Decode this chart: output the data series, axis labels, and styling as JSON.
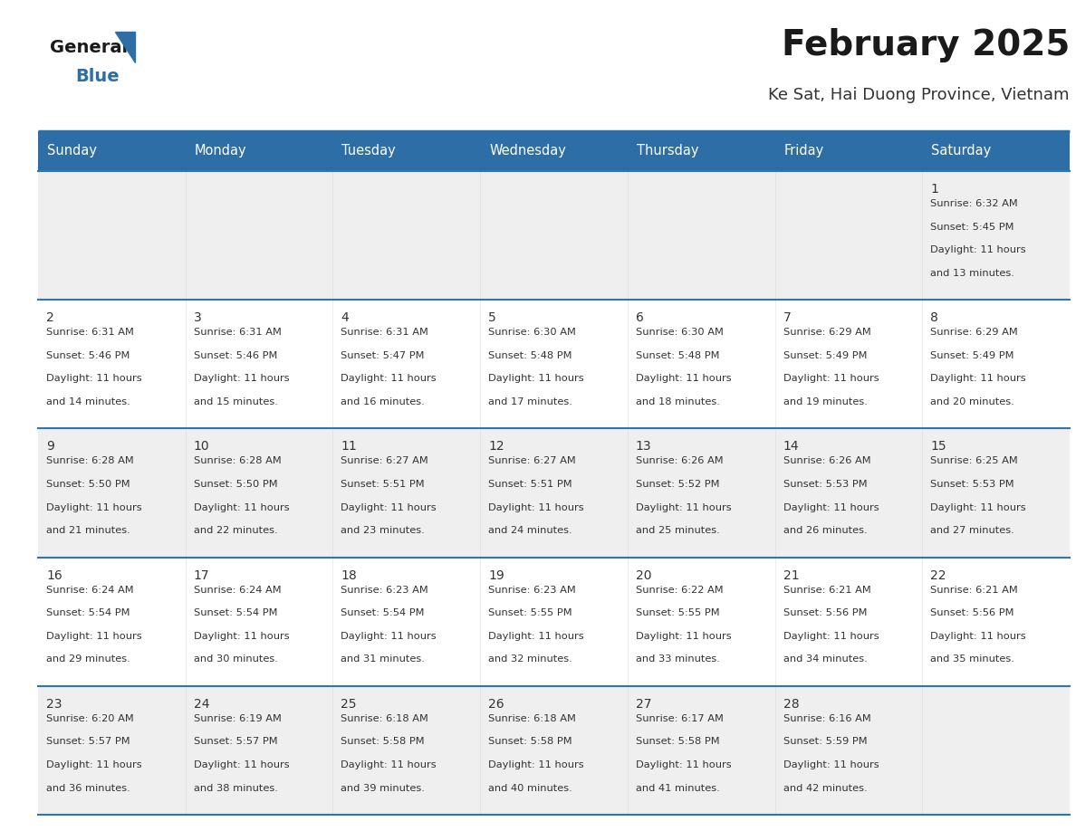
{
  "title": "February 2025",
  "subtitle": "Ke Sat, Hai Duong Province, Vietnam",
  "header_bg": "#2E6EA6",
  "header_text_color": "#FFFFFF",
  "cell_bg_light": "#EFEFEF",
  "cell_bg_white": "#FFFFFF",
  "cell_border_color": "#2E75B6",
  "day_number_color": "#333333",
  "cell_text_color": "#333333",
  "days_of_week": [
    "Sunday",
    "Monday",
    "Tuesday",
    "Wednesday",
    "Thursday",
    "Friday",
    "Saturday"
  ],
  "calendar_data": [
    [
      null,
      null,
      null,
      null,
      null,
      null,
      {
        "day": 1,
        "sunrise": "6:32 AM",
        "sunset": "5:45 PM",
        "daylight": "11 hours",
        "daylight2": "and 13 minutes."
      }
    ],
    [
      {
        "day": 2,
        "sunrise": "6:31 AM",
        "sunset": "5:46 PM",
        "daylight": "11 hours",
        "daylight2": "and 14 minutes."
      },
      {
        "day": 3,
        "sunrise": "6:31 AM",
        "sunset": "5:46 PM",
        "daylight": "11 hours",
        "daylight2": "and 15 minutes."
      },
      {
        "day": 4,
        "sunrise": "6:31 AM",
        "sunset": "5:47 PM",
        "daylight": "11 hours",
        "daylight2": "and 16 minutes."
      },
      {
        "day": 5,
        "sunrise": "6:30 AM",
        "sunset": "5:48 PM",
        "daylight": "11 hours",
        "daylight2": "and 17 minutes."
      },
      {
        "day": 6,
        "sunrise": "6:30 AM",
        "sunset": "5:48 PM",
        "daylight": "11 hours",
        "daylight2": "and 18 minutes."
      },
      {
        "day": 7,
        "sunrise": "6:29 AM",
        "sunset": "5:49 PM",
        "daylight": "11 hours",
        "daylight2": "and 19 minutes."
      },
      {
        "day": 8,
        "sunrise": "6:29 AM",
        "sunset": "5:49 PM",
        "daylight": "11 hours",
        "daylight2": "and 20 minutes."
      }
    ],
    [
      {
        "day": 9,
        "sunrise": "6:28 AM",
        "sunset": "5:50 PM",
        "daylight": "11 hours",
        "daylight2": "and 21 minutes."
      },
      {
        "day": 10,
        "sunrise": "6:28 AM",
        "sunset": "5:50 PM",
        "daylight": "11 hours",
        "daylight2": "and 22 minutes."
      },
      {
        "day": 11,
        "sunrise": "6:27 AM",
        "sunset": "5:51 PM",
        "daylight": "11 hours",
        "daylight2": "and 23 minutes."
      },
      {
        "day": 12,
        "sunrise": "6:27 AM",
        "sunset": "5:51 PM",
        "daylight": "11 hours",
        "daylight2": "and 24 minutes."
      },
      {
        "day": 13,
        "sunrise": "6:26 AM",
        "sunset": "5:52 PM",
        "daylight": "11 hours",
        "daylight2": "and 25 minutes."
      },
      {
        "day": 14,
        "sunrise": "6:26 AM",
        "sunset": "5:53 PM",
        "daylight": "11 hours",
        "daylight2": "and 26 minutes."
      },
      {
        "day": 15,
        "sunrise": "6:25 AM",
        "sunset": "5:53 PM",
        "daylight": "11 hours",
        "daylight2": "and 27 minutes."
      }
    ],
    [
      {
        "day": 16,
        "sunrise": "6:24 AM",
        "sunset": "5:54 PM",
        "daylight": "11 hours",
        "daylight2": "and 29 minutes."
      },
      {
        "day": 17,
        "sunrise": "6:24 AM",
        "sunset": "5:54 PM",
        "daylight": "11 hours",
        "daylight2": "and 30 minutes."
      },
      {
        "day": 18,
        "sunrise": "6:23 AM",
        "sunset": "5:54 PM",
        "daylight": "11 hours",
        "daylight2": "and 31 minutes."
      },
      {
        "day": 19,
        "sunrise": "6:23 AM",
        "sunset": "5:55 PM",
        "daylight": "11 hours",
        "daylight2": "and 32 minutes."
      },
      {
        "day": 20,
        "sunrise": "6:22 AM",
        "sunset": "5:55 PM",
        "daylight": "11 hours",
        "daylight2": "and 33 minutes."
      },
      {
        "day": 21,
        "sunrise": "6:21 AM",
        "sunset": "5:56 PM",
        "daylight": "11 hours",
        "daylight2": "and 34 minutes."
      },
      {
        "day": 22,
        "sunrise": "6:21 AM",
        "sunset": "5:56 PM",
        "daylight": "11 hours",
        "daylight2": "and 35 minutes."
      }
    ],
    [
      {
        "day": 23,
        "sunrise": "6:20 AM",
        "sunset": "5:57 PM",
        "daylight": "11 hours",
        "daylight2": "and 36 minutes."
      },
      {
        "day": 24,
        "sunrise": "6:19 AM",
        "sunset": "5:57 PM",
        "daylight": "11 hours",
        "daylight2": "and 38 minutes."
      },
      {
        "day": 25,
        "sunrise": "6:18 AM",
        "sunset": "5:58 PM",
        "daylight": "11 hours",
        "daylight2": "and 39 minutes."
      },
      {
        "day": 26,
        "sunrise": "6:18 AM",
        "sunset": "5:58 PM",
        "daylight": "11 hours",
        "daylight2": "and 40 minutes."
      },
      {
        "day": 27,
        "sunrise": "6:17 AM",
        "sunset": "5:58 PM",
        "daylight": "11 hours",
        "daylight2": "and 41 minutes."
      },
      {
        "day": 28,
        "sunrise": "6:16 AM",
        "sunset": "5:59 PM",
        "daylight": "11 hours",
        "daylight2": "and 42 minutes."
      },
      null
    ]
  ]
}
